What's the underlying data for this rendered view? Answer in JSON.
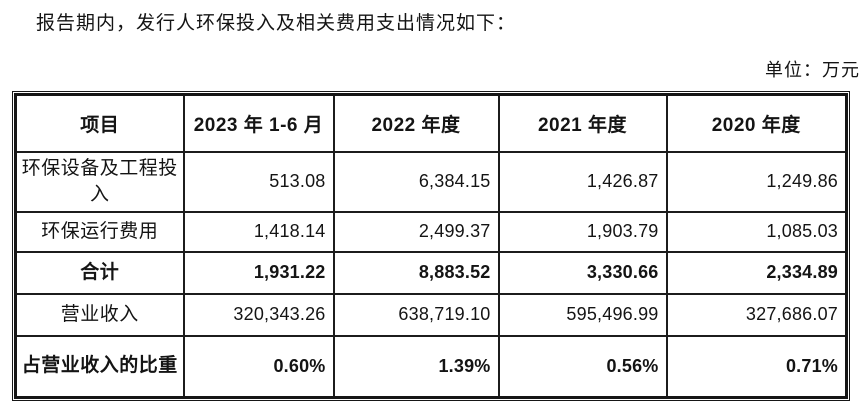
{
  "intro": {
    "text": "报告期内，发行人环保投入及相关费用支出情况如下："
  },
  "unit": {
    "label": "单位：万元"
  },
  "table": {
    "columns": [
      "项目",
      "2023 年 1-6 月",
      "2022 年度",
      "2021 年度",
      "2020 年度"
    ],
    "rows": [
      {
        "label": "环保设备及工程投入",
        "values": [
          "513.08",
          "6,384.15",
          "1,426.87",
          "1,249.86"
        ]
      },
      {
        "label": "环保运行费用",
        "values": [
          "1,418.14",
          "2,499.37",
          "1,903.79",
          "1,085.03"
        ]
      },
      {
        "label": "合计",
        "values": [
          "1,931.22",
          "8,883.52",
          "3,330.66",
          "2,334.89"
        ]
      },
      {
        "label": "营业收入",
        "values": [
          "320,343.26",
          "638,719.10",
          "595,496.99",
          "327,686.07"
        ]
      },
      {
        "label": "占营业收入的比重",
        "values": [
          "0.60%",
          "1.39%",
          "0.56%",
          "0.71%"
        ]
      }
    ]
  },
  "colors": {
    "text": "#141414",
    "border": "#161616",
    "background": "#ffffff"
  }
}
